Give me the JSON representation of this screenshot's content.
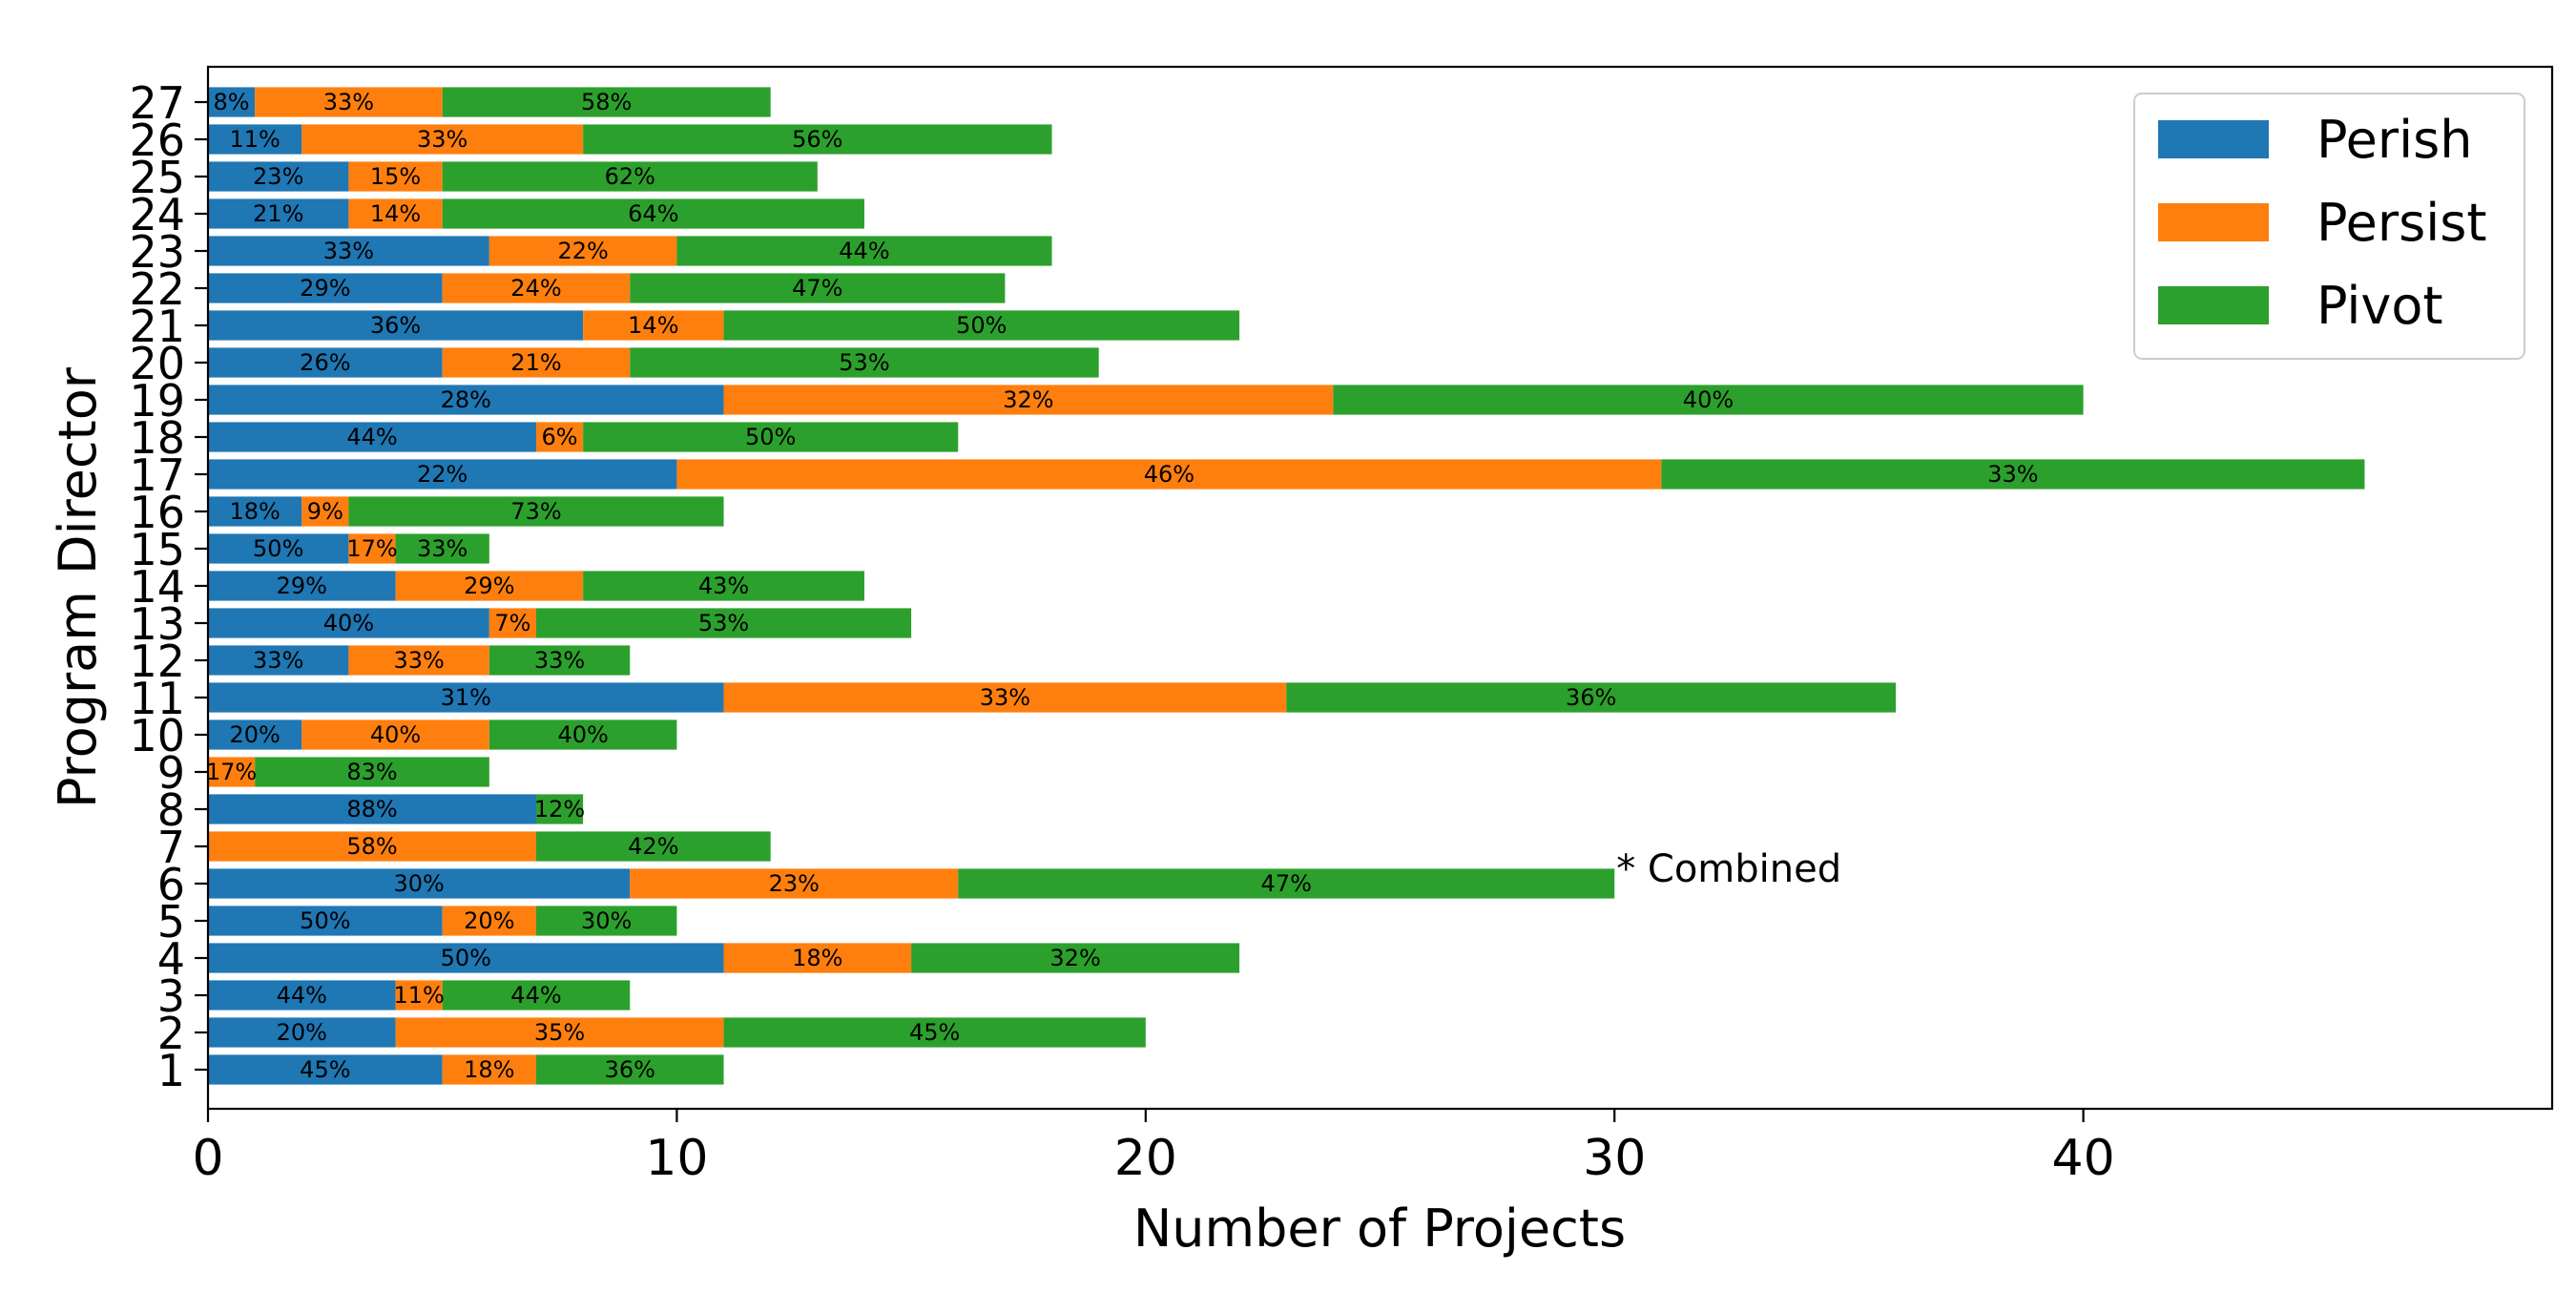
{
  "chart_data": {
    "type": "bar",
    "orientation": "horizontal",
    "stacked": true,
    "title": "",
    "xlabel": "Number of Projects",
    "ylabel": "Program Director",
    "xlim": [
      0,
      50
    ],
    "x_ticks": [
      0,
      10,
      20,
      30,
      40
    ],
    "grid": false,
    "legend_position": "top-right",
    "categories": [
      "1",
      "2",
      "3",
      "4",
      "5",
      "6",
      "7",
      "8",
      "9",
      "10",
      "11",
      "12",
      "13",
      "14",
      "15",
      "16",
      "17",
      "18",
      "19",
      "20",
      "21",
      "22",
      "23",
      "24",
      "25",
      "26",
      "27"
    ],
    "series": [
      {
        "name": "Perish",
        "color": "#1f77b4",
        "values": [
          5,
          4,
          4,
          11,
          5,
          9,
          0,
          7,
          0,
          2,
          11,
          3,
          6,
          4,
          3,
          2,
          10,
          7,
          11,
          5,
          8,
          5,
          6,
          3,
          3,
          2,
          1
        ],
        "labels": [
          "45%",
          "20%",
          "44%",
          "50%",
          "50%",
          "30%",
          "",
          "88%",
          "",
          "20%",
          "31%",
          "33%",
          "40%",
          "29%",
          "50%",
          "18%",
          "22%",
          "44%",
          "28%",
          "26%",
          "36%",
          "29%",
          "33%",
          "21%",
          "23%",
          "11%",
          "8%"
        ]
      },
      {
        "name": "Persist",
        "color": "#ff7f0e",
        "values": [
          2,
          7,
          1,
          4,
          2,
          7,
          7,
          0,
          1,
          4,
          12,
          3,
          1,
          4,
          1,
          1,
          21,
          1,
          13,
          4,
          3,
          4,
          4,
          2,
          2,
          6,
          4
        ],
        "labels": [
          "18%",
          "35%",
          "11%",
          "18%",
          "20%",
          "23%",
          "58%",
          "",
          "17%",
          "40%",
          "33%",
          "33%",
          "7%",
          "29%",
          "17%",
          "9%",
          "46%",
          "6%",
          "32%",
          "21%",
          "14%",
          "24%",
          "22%",
          "14%",
          "15%",
          "33%",
          "33%"
        ]
      },
      {
        "name": "Pivot",
        "color": "#2ca02c",
        "values": [
          4,
          9,
          4,
          7,
          3,
          14,
          5,
          1,
          5,
          4,
          13,
          3,
          8,
          6,
          2,
          8,
          15,
          8,
          16,
          10,
          11,
          8,
          8,
          9,
          8,
          10,
          7
        ],
        "labels": [
          "36%",
          "45%",
          "44%",
          "32%",
          "30%",
          "47%",
          "42%",
          "12%",
          "83%",
          "40%",
          "36%",
          "33%",
          "53%",
          "43%",
          "33%",
          "73%",
          "33%",
          "50%",
          "40%",
          "53%",
          "50%",
          "47%",
          "44%",
          "64%",
          "62%",
          "56%",
          "58%"
        ]
      }
    ],
    "annotations": [
      {
        "text": "* Combined",
        "category": "6",
        "x": 30
      }
    ]
  }
}
